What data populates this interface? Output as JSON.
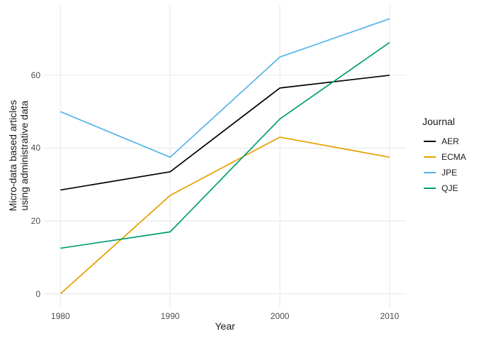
{
  "figure": {
    "x_axis_title": "Year",
    "y_axis_title_line1": "Micro-data based articles",
    "y_axis_title_line2": "using administrative data",
    "legend_title": "Journal"
  },
  "chart_data": {
    "type": "line",
    "title": "",
    "xlabel": "Year",
    "ylabel": "Micro-data based articles using administrative data",
    "legend_title": "Journal",
    "legend_position": "right",
    "grid": true,
    "x": [
      1980,
      1990,
      2000,
      2010
    ],
    "series": [
      {
        "name": "AER",
        "color": "#000000",
        "values": [
          28.5,
          33.5,
          56.5,
          60
        ]
      },
      {
        "name": "ECMA",
        "color": "#E69F00",
        "values": [
          0,
          27,
          43,
          37.5
        ]
      },
      {
        "name": "JPE",
        "color": "#56B4E9",
        "values": [
          50,
          37.5,
          65,
          75.5
        ]
      },
      {
        "name": "QJE",
        "color": "#009E73",
        "values": [
          12.5,
          17,
          48,
          69
        ]
      }
    ],
    "x_ticks": [
      1980,
      1990,
      2000,
      2010
    ],
    "y_ticks": [
      0,
      20,
      40,
      60
    ],
    "xlim": [
      1978.5,
      2011.5
    ],
    "ylim": [
      -3.8,
      79.3
    ],
    "colors": {
      "grid": "#EBEBEB",
      "tick_text": "#4D4D4D",
      "title_text": "#1A1A1A",
      "panel_background": "#FFFFFF"
    }
  }
}
